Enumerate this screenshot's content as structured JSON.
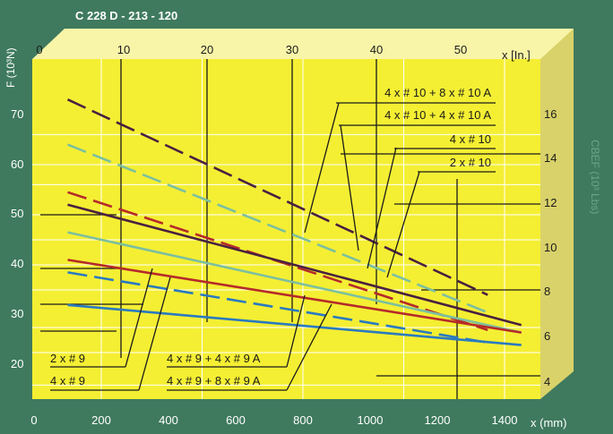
{
  "chart_data": {
    "type": "line",
    "title": "C 228 D - 213 - 120",
    "ylabel_left": "F (10³N)",
    "ylabel_right": "CBEF (10³ Lbs)",
    "x_bottom_unit": "x (mm)",
    "x_top_unit": "x [In.]",
    "x_bottom_ticks": [
      "0",
      "200",
      "400",
      "600",
      "800",
      "1000",
      "1200",
      "1400"
    ],
    "x_top_ticks": [
      "0",
      "10",
      "20",
      "30",
      "40",
      "50"
    ],
    "y_left_ticks": [
      "20",
      "30",
      "40",
      "50",
      "60",
      "70"
    ],
    "y_right_ticks": [
      "4",
      "6",
      "8",
      "10",
      "12",
      "14",
      "16"
    ],
    "xlim": [
      0,
      1450
    ],
    "ylim": [
      15,
      80
    ],
    "grid": true,
    "colors": {
      "panel": "#f4ef33",
      "background": "#3f7a5e",
      "text": "#ffffff",
      "ink": "#1a1a1a"
    },
    "series": [
      {
        "name": "4 x # 10 + 8 x # 10 A",
        "color": "#4a2040",
        "dash": true,
        "x": [
          100,
          1350
        ],
        "y": [
          73,
          34
        ]
      },
      {
        "name": "4 x # 10 + 4 x # 10 A",
        "color": "#7cbfa0",
        "dash": true,
        "x": [
          100,
          1350
        ],
        "y": [
          64,
          30.5
        ]
      },
      {
        "name": "",
        "color": "#b52a2a",
        "dash": true,
        "x": [
          100,
          1350
        ],
        "y": [
          54.5,
          27
        ]
      },
      {
        "name": "4 x # 10",
        "color": "#4a2040",
        "dash": false,
        "x": [
          100,
          1450
        ],
        "y": [
          52,
          28
        ]
      },
      {
        "name": "2 x # 10",
        "color": "#7cbfa0",
        "dash": false,
        "x": [
          100,
          1450
        ],
        "y": [
          46.5,
          26.5
        ]
      },
      {
        "name": "",
        "color": "#b52a2a",
        "dash": false,
        "x": [
          100,
          1450
        ],
        "y": [
          41,
          26.5
        ]
      },
      {
        "name": "",
        "color": "#2a7ac0",
        "dash": true,
        "x": [
          100,
          1350
        ],
        "y": [
          38.5,
          24.5
        ]
      },
      {
        "name": "",
        "color": "#2a7ac0",
        "dash": false,
        "x": [
          100,
          1450
        ],
        "y": [
          32,
          24
        ]
      }
    ],
    "annotations_right": [
      "4 x # 10 + 8 x # 10 A",
      "4 x # 10 + 4 x # 10 A",
      "4 x # 10",
      "2 x # 10"
    ],
    "annotations_left": [
      "2 x # 9",
      "4 x # 9",
      "4 x # 9 + 4 x # 9 A",
      "4 x # 9 + 8 x # 9 A"
    ]
  }
}
